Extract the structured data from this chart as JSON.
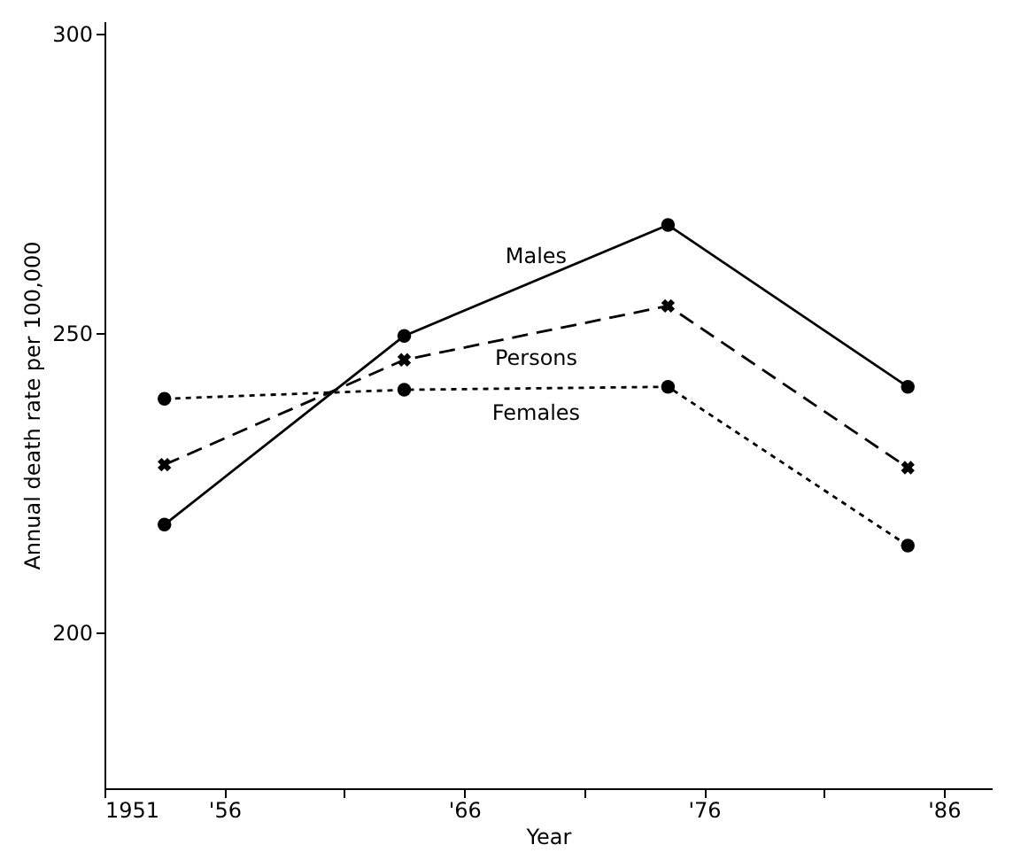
{
  "chart_data": {
    "type": "line",
    "xlabel": "Year",
    "ylabel": "Annual death rate per 100,000",
    "x": [
      1953.5,
      1963.5,
      1974.5,
      1984.5
    ],
    "series": [
      {
        "name": "Males",
        "color": "#000000",
        "marker": "circle",
        "line_style": "solid",
        "values": [
          218,
          249.5,
          268,
          241
        ]
      },
      {
        "name": "Persons",
        "color": "#000000",
        "marker": "cross",
        "line_style": "dashed",
        "values": [
          228,
          245.5,
          254.5,
          227.5
        ]
      },
      {
        "name": "Females",
        "color": "#000000",
        "marker": "circle",
        "line_style": "dotted",
        "values": [
          239,
          240.5,
          241,
          214.5
        ]
      }
    ],
    "xlim": [
      1951,
      1988
    ],
    "xticks": [
      1951,
      {
        "value": 1956,
        "label": "'56"
      },
      {
        "value": 1961,
        "label": null
      },
      {
        "value": 1966,
        "label": "'66"
      },
      {
        "value": 1971,
        "label": null
      },
      {
        "value": 1976,
        "label": "'76"
      },
      {
        "value": 1981,
        "label": null
      },
      {
        "value": 1986,
        "label": "'86"
      }
    ],
    "ylim": [
      174,
      302
    ],
    "yticks": [
      200,
      250,
      300
    ],
    "grid": false
  }
}
